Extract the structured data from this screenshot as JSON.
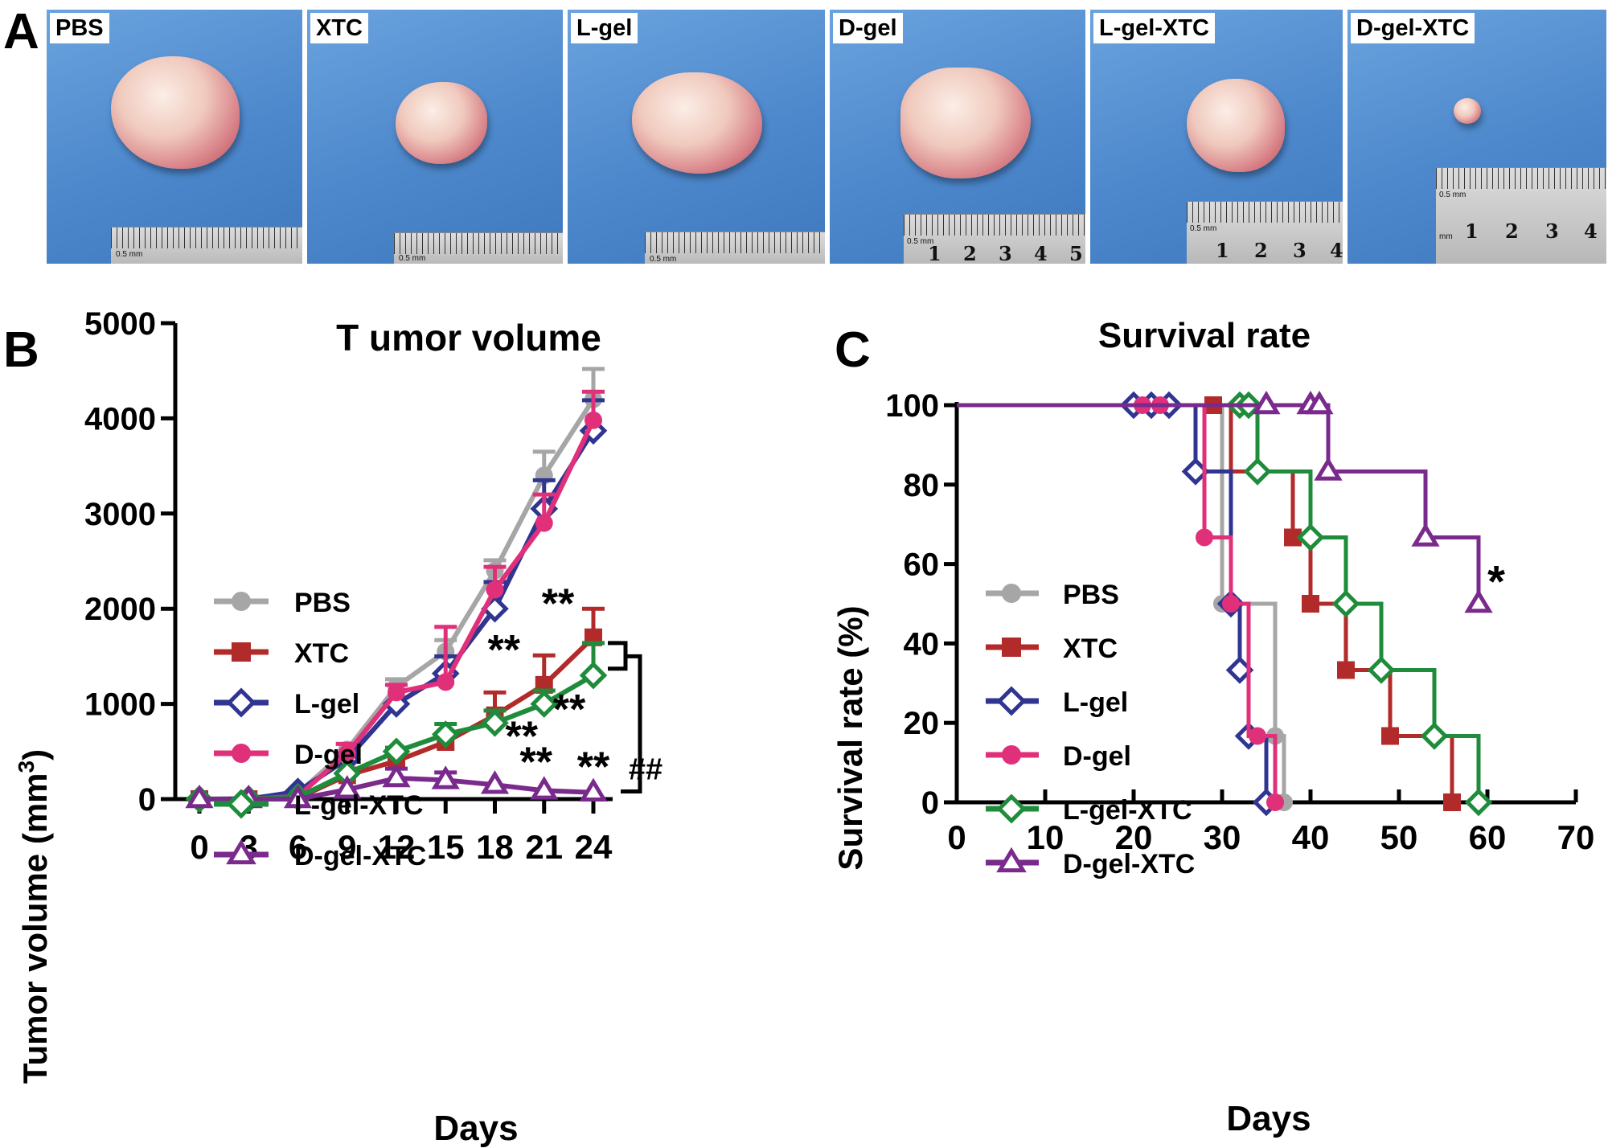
{
  "panels": {
    "a": "A",
    "b": "B",
    "c": "C"
  },
  "photos": [
    {
      "label": "PBS",
      "ruler_nums": [],
      "unit": "0.5 mm"
    },
    {
      "label": "XTC",
      "ruler_nums": [],
      "unit": "0.5 mm"
    },
    {
      "label": "L-gel",
      "ruler_nums": [],
      "unit": "0.5 mm"
    },
    {
      "label": "D-gel",
      "ruler_nums": [
        "1",
        "2",
        "3",
        "4",
        "5"
      ],
      "unit": "0.5 mm"
    },
    {
      "label": "L-gel-XTC",
      "ruler_nums": [
        "1",
        "2",
        "3",
        "4"
      ],
      "unit": "0.5 mm"
    },
    {
      "label": "D-gel-XTC",
      "ruler_nums": [
        "1",
        "2",
        "3",
        "4"
      ],
      "unit": "0.5 mm",
      "unit2": "mm"
    }
  ],
  "chart_data": [
    {
      "type": "line",
      "title": "T umor volume",
      "xlabel": "Days",
      "ylabel": "Tumor volume (mm",
      "ylabel_sup": "3",
      "ylabel_end": ")",
      "xlim": [
        0,
        24
      ],
      "ylim": [
        0,
        5000
      ],
      "xticks": [
        0,
        3,
        6,
        9,
        12,
        15,
        18,
        21,
        24
      ],
      "yticks": [
        0,
        1000,
        2000,
        3000,
        4000,
        5000
      ],
      "x": [
        0,
        3,
        6,
        9,
        12,
        15,
        18,
        21,
        24
      ],
      "legend_position": "middle-left",
      "series": [
        {
          "name": "PBS",
          "color": "#a6a6a6",
          "marker": "circle",
          "values": [
            0,
            10,
            60,
            520,
            1180,
            1550,
            2400,
            3400,
            4200
          ],
          "err": [
            0,
            0,
            0,
            60,
            80,
            120,
            110,
            250,
            320
          ]
        },
        {
          "name": "XTC",
          "color": "#b22b2b",
          "marker": "square",
          "values": [
            0,
            0,
            10,
            250,
            400,
            600,
            880,
            1200,
            1700
          ],
          "err": [
            0,
            0,
            0,
            0,
            60,
            80,
            240,
            310,
            300
          ]
        },
        {
          "name": "L-gel",
          "color": "#2f3590",
          "marker": "diamond",
          "values": [
            0,
            0,
            80,
            420,
            1000,
            1320,
            2000,
            3050,
            3870
          ],
          "err": [
            0,
            0,
            0,
            60,
            0,
            180,
            280,
            300,
            320
          ]
        },
        {
          "name": "D-gel",
          "color": "#e0307a",
          "marker": "circle",
          "values": [
            0,
            0,
            30,
            480,
            1120,
            1230,
            2200,
            2900,
            3980
          ],
          "err": [
            0,
            0,
            0,
            100,
            80,
            580,
            240,
            300,
            300
          ]
        },
        {
          "name": "L-gel-XTC",
          "color": "#1e8c3a",
          "marker": "diamond",
          "values": [
            0,
            0,
            20,
            270,
            500,
            680,
            800,
            1000,
            1300
          ],
          "err": [
            0,
            0,
            0,
            0,
            40,
            110,
            130,
            140,
            340
          ]
        },
        {
          "name": "D-gel-XTC",
          "color": "#7a2a8c",
          "marker": "triangle",
          "values": [
            0,
            0,
            0,
            100,
            220,
            200,
            150,
            90,
            70
          ],
          "err": [
            0,
            0,
            0,
            0,
            100,
            80,
            0,
            0,
            0
          ]
        }
      ],
      "annotations": [
        {
          "text": "**",
          "x": 24,
          "y": 1700
        },
        {
          "text": "**",
          "x": 21,
          "y": 1200
        },
        {
          "text": "**",
          "x": 24,
          "y": 1300
        },
        {
          "text": "**",
          "x": 21,
          "y": 1000
        },
        {
          "text": "**",
          "x": 21,
          "y": 90
        },
        {
          "text": "**",
          "x": 24,
          "y": 70
        },
        {
          "text": "##",
          "x": 24,
          "y": 800
        }
      ]
    },
    {
      "type": "line",
      "title": "Survival rate",
      "xlabel": "Days",
      "ylabel": "Survival  rate (%)",
      "xlim": [
        0,
        70
      ],
      "ylim": [
        0,
        100
      ],
      "xticks": [
        0,
        10,
        20,
        30,
        40,
        50,
        60,
        70
      ],
      "yticks": [
        0,
        20,
        40,
        60,
        80,
        100
      ],
      "legend_position": "lower-left",
      "series": [
        {
          "name": "PBS",
          "color": "#a6a6a6",
          "marker": "circle",
          "steps": [
            [
              0,
              100
            ],
            [
              30,
              100
            ],
            [
              30,
              50
            ],
            [
              36,
              50
            ],
            [
              36,
              16.7
            ],
            [
              37,
              16.7
            ],
            [
              37,
              0
            ]
          ],
          "markers": [
            [
              30,
              50
            ],
            [
              36,
              16.7
            ],
            [
              37,
              0
            ]
          ]
        },
        {
          "name": "XTC",
          "color": "#b22b2b",
          "marker": "square",
          "steps": [
            [
              0,
              100
            ],
            [
              31,
              100
            ],
            [
              31,
              83.3
            ],
            [
              38,
              83.3
            ],
            [
              38,
              66.7
            ],
            [
              40,
              66.7
            ],
            [
              40,
              50
            ],
            [
              44,
              50
            ],
            [
              44,
              33.3
            ],
            [
              49,
              33.3
            ],
            [
              49,
              16.7
            ],
            [
              56,
              16.7
            ],
            [
              56,
              0
            ]
          ],
          "markers": [
            [
              29,
              100
            ],
            [
              38,
              66.7
            ],
            [
              40,
              50
            ],
            [
              44,
              33.3
            ],
            [
              49,
              16.7
            ],
            [
              56,
              0
            ]
          ]
        },
        {
          "name": "L-gel",
          "color": "#2f3590",
          "marker": "diamond",
          "steps": [
            [
              0,
              100
            ],
            [
              27,
              100
            ],
            [
              27,
              83.3
            ],
            [
              31,
              83.3
            ],
            [
              31,
              50
            ],
            [
              32,
              50
            ],
            [
              32,
              33.3
            ],
            [
              33,
              33.3
            ],
            [
              33,
              16.7
            ],
            [
              35,
              16.7
            ],
            [
              35,
              0
            ]
          ],
          "markers": [
            [
              20,
              100
            ],
            [
              22,
              100
            ],
            [
              24,
              100
            ],
            [
              27,
              83.3
            ],
            [
              31,
              50
            ],
            [
              32,
              33.3
            ],
            [
              33,
              16.7
            ],
            [
              35,
              0
            ]
          ]
        },
        {
          "name": "D-gel",
          "color": "#e0307a",
          "marker": "circle",
          "steps": [
            [
              0,
              100
            ],
            [
              28,
              100
            ],
            [
              28,
              66.7
            ],
            [
              31,
              66.7
            ],
            [
              31,
              50
            ],
            [
              33,
              50
            ],
            [
              33,
              16.7
            ],
            [
              36,
              16.7
            ],
            [
              36,
              0
            ]
          ],
          "markers": [
            [
              21,
              100
            ],
            [
              23,
              100
            ],
            [
              28,
              66.7
            ],
            [
              31,
              50
            ],
            [
              34,
              16.7
            ],
            [
              36,
              0
            ]
          ]
        },
        {
          "name": "L-gel-XTC",
          "color": "#1e8c3a",
          "marker": "diamond",
          "steps": [
            [
              0,
              100
            ],
            [
              34,
              100
            ],
            [
              34,
              83.3
            ],
            [
              40,
              83.3
            ],
            [
              40,
              66.7
            ],
            [
              44,
              66.7
            ],
            [
              44,
              50
            ],
            [
              48,
              50
            ],
            [
              48,
              33.3
            ],
            [
              54,
              33.3
            ],
            [
              54,
              16.7
            ],
            [
              59,
              16.7
            ],
            [
              59,
              0
            ]
          ],
          "markers": [
            [
              32,
              100
            ],
            [
              33,
              100
            ],
            [
              34,
              83.3
            ],
            [
              40,
              66.7
            ],
            [
              44,
              50
            ],
            [
              48,
              33.3
            ],
            [
              54,
              16.7
            ],
            [
              59,
              0
            ]
          ]
        },
        {
          "name": "D-gel-XTC",
          "color": "#7a2a8c",
          "marker": "triangle",
          "steps": [
            [
              0,
              100
            ],
            [
              42,
              100
            ],
            [
              42,
              83.3
            ],
            [
              53,
              83.3
            ],
            [
              53,
              66.7
            ],
            [
              59,
              66.7
            ],
            [
              59,
              50
            ]
          ],
          "markers": [
            [
              35,
              100
            ],
            [
              40,
              100
            ],
            [
              41,
              100
            ],
            [
              42,
              83.3
            ],
            [
              53,
              66.7
            ],
            [
              59,
              50
            ]
          ]
        }
      ],
      "annotations": [
        {
          "text": "*",
          "x": 61,
          "y": 55
        }
      ]
    }
  ]
}
